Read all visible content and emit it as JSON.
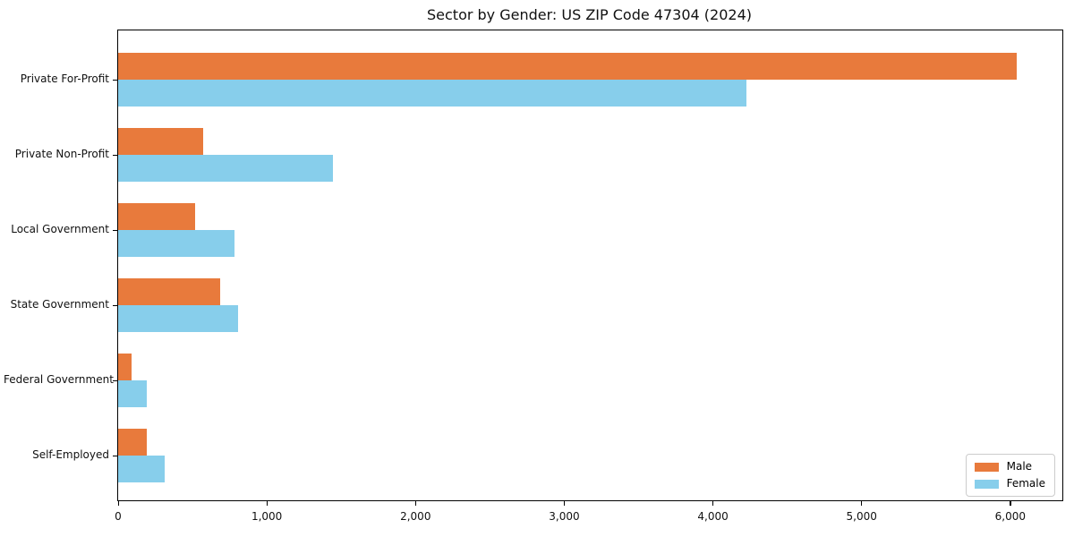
{
  "chart_data": {
    "type": "bar",
    "orientation": "horizontal",
    "title": "Sector by Gender: US ZIP Code 47304 (2024)",
    "categories": [
      "Private For-Profit",
      "Private Non-Profit",
      "Local Government",
      "State Government",
      "Federal Government",
      "Self-Employed"
    ],
    "series": [
      {
        "name": "Male",
        "color": "#E87A3C",
        "values": [
          6045,
          570,
          515,
          685,
          90,
          195
        ]
      },
      {
        "name": "Female",
        "color": "#87CEEB",
        "values": [
          4225,
          1445,
          780,
          805,
          195,
          315
        ]
      }
    ],
    "xlim": [
      0,
      6350
    ],
    "x_ticks": [
      0,
      1000,
      2000,
      3000,
      4000,
      5000,
      6000
    ],
    "x_tick_labels": [
      "0",
      "1,000",
      "2,000",
      "3,000",
      "4,000",
      "5,000",
      "6,000"
    ],
    "ylabel": "",
    "xlabel": "",
    "grid": false,
    "legend": {
      "position": "lower right",
      "entries": [
        "Male",
        "Female"
      ]
    },
    "frame_color": "#000000",
    "background_color": "#ffffff"
  }
}
